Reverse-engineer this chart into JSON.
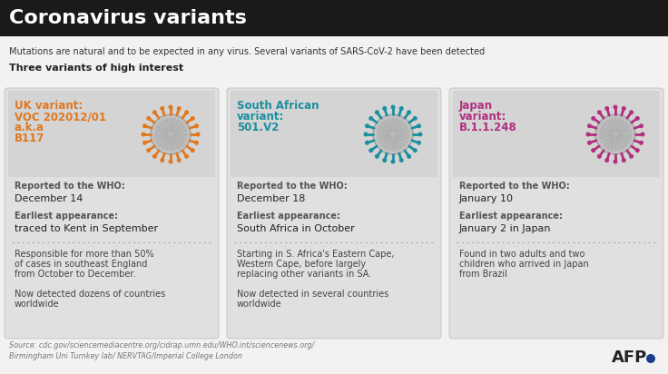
{
  "title": "Coronavirus variants",
  "subtitle": "Mutations are natural and to be expected in any virus. Several variants of SARS-CoV-2 have been detected",
  "section_header": "Three variants of high interest",
  "background_color": "#f2f2f2",
  "header_bg": "#1a1a1a",
  "card_bg": "#e0e0e0",
  "card_top_bg": "#d4d4d4",
  "variants": [
    {
      "label": "UK variant:\nVOC 202012/01\na.k.a\nB117",
      "color": "#e07820",
      "who_label": "Reported to the WHO:",
      "who": "December 14",
      "app_label": "Earliest appearance:",
      "appearance": "traced to Kent in September",
      "detail": "Responsible for more than 50%\nof cases in southeast England\nfrom October to December.\n\nNow detected dozens of countries\nworldwide",
      "virus_color": "#e07820"
    },
    {
      "label": "South African\nvariant:\n501.V2",
      "color": "#1a8fa0",
      "who_label": "Reported to the WHO:",
      "who": "December 18",
      "app_label": "Earliest appearance:",
      "appearance": "South Africa in October",
      "detail": "Starting in S. Africa's Eastern Cape,\nWestern Cape, before largely\nreplacing other variants in SA.\n\nNow detected in several countries\nworldwide",
      "virus_color": "#1a8fa0"
    },
    {
      "label": "Japan\nvariant:\nB.1.1.248",
      "color": "#b03080",
      "who_label": "Reported to the WHO:",
      "who": "January 10",
      "app_label": "Earliest appearance:",
      "appearance": "January 2 in Japan",
      "detail": "Found in two adults and two\nchildren who arrived in Japan\nfrom Brazil",
      "virus_color": "#b03080"
    }
  ],
  "source_line1": "Source: cdc.gov/sciencemediacentre.org/cidrap.umn.edu/WHO.int/sciencenews.org/",
  "source_line2": "Birmingham Uni Turnkey lab/ NERVTAG/Imperial College London",
  "afp": "AFP"
}
